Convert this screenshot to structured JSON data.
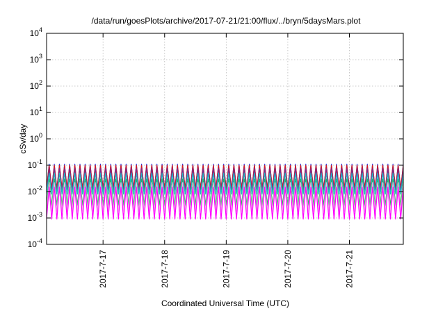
{
  "chart_data": {
    "type": "line",
    "title": "/data/run/goesPlots/archive/2017-07-21/21:00/flux/../bryn/5daysMars.plot",
    "xlabel": "Coordinated Universal Time (UTC)",
    "ylabel": "cSv/day",
    "yscale": "log",
    "ylim": [
      0.0001,
      10000
    ],
    "xlim": [
      "2017-07-16 02:00",
      "2017-07-21 21:00"
    ],
    "grid": true,
    "yticks": [
      {
        "value": 0.0001,
        "base": "10",
        "exp": "-4"
      },
      {
        "value": 0.001,
        "base": "10",
        "exp": "-3"
      },
      {
        "value": 0.01,
        "base": "10",
        "exp": "-2"
      },
      {
        "value": 0.1,
        "base": "10",
        "exp": "-1"
      },
      {
        "value": 1,
        "base": "10",
        "exp": "0"
      },
      {
        "value": 10,
        "base": "10",
        "exp": "1"
      },
      {
        "value": 100,
        "base": "10",
        "exp": "2"
      },
      {
        "value": 1000,
        "base": "10",
        "exp": "3"
      },
      {
        "value": 10000,
        "base": "10",
        "exp": "4"
      }
    ],
    "xticks": [
      "2017-7-17",
      "2017-7-18",
      "2017-7-19",
      "2017-7-20",
      "2017-7-21"
    ],
    "sawtooth_period_hours": 2,
    "series": [
      {
        "color": "#1a3cff",
        "peak": 0.11,
        "trough": 0.012
      },
      {
        "color": "#d81b1b",
        "peak": 0.1,
        "trough": 0.014
      },
      {
        "color": "#7a2a8a",
        "peak": 0.075,
        "trough": 0.01
      },
      {
        "color": "#1fb6c8",
        "peak": 0.05,
        "trough": 0.008
      },
      {
        "color": "#22b85a",
        "peak": 0.03,
        "trough": 0.003
      },
      {
        "color": "#f2b0e8",
        "peak": 0.022,
        "trough": 0.0018
      },
      {
        "color": "#ff00ff",
        "peak": 0.015,
        "trough": 0.0009
      }
    ]
  }
}
